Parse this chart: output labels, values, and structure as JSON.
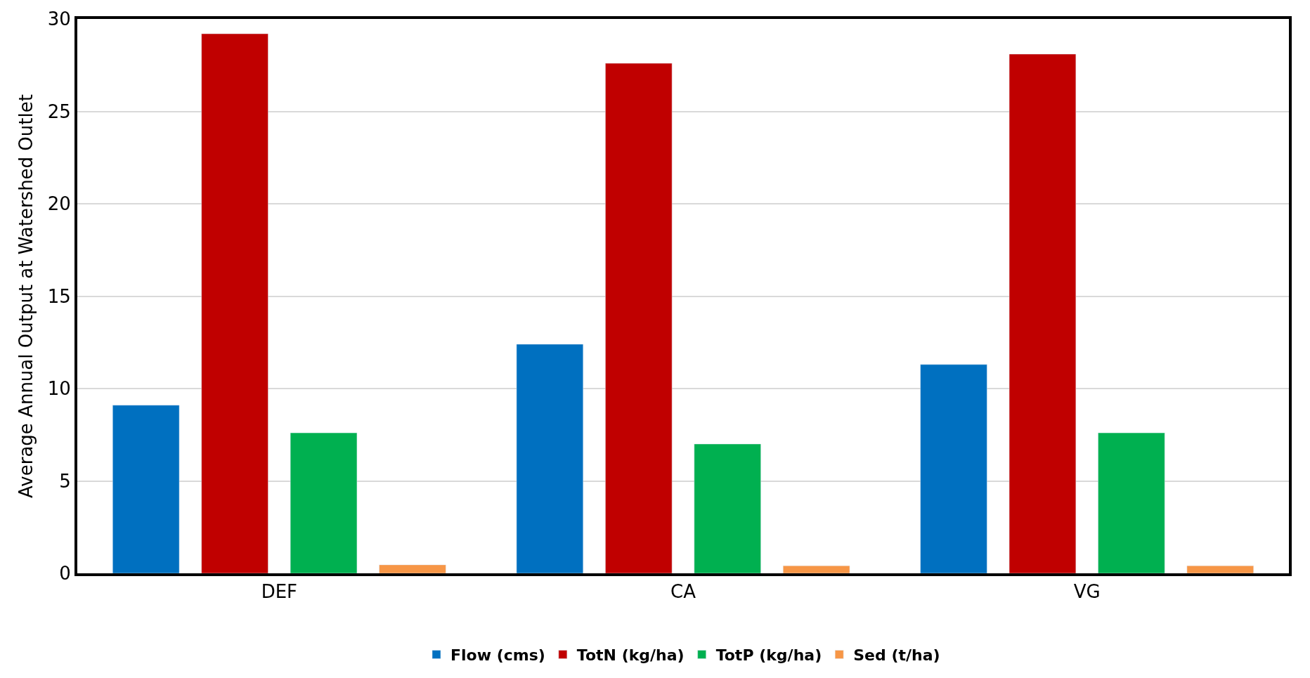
{
  "chart_data": {
    "type": "bar",
    "ylabel": "Average Annual Output at Watershed Outlet",
    "categories": [
      "DEF",
      "CA",
      "VG"
    ],
    "series": [
      {
        "name": "Flow (cms)",
        "color": "#0070c0",
        "values": [
          9.1,
          12.4,
          11.3
        ]
      },
      {
        "name": "TotN (kg/ha)",
        "color": "#c00000",
        "values": [
          29.2,
          27.6,
          28.1
        ]
      },
      {
        "name": "TotP (kg/ha)",
        "color": "#00b050",
        "values": [
          7.6,
          7.0,
          7.6
        ]
      },
      {
        "name": "Sed (t/ha)",
        "color": "#f79646",
        "values": [
          0.46,
          0.41,
          0.41
        ]
      }
    ],
    "ylim": [
      0,
      30
    ],
    "yticks": [
      0,
      5,
      10,
      15,
      20,
      25,
      30
    ],
    "grid": "y",
    "legend": "bottom"
  }
}
